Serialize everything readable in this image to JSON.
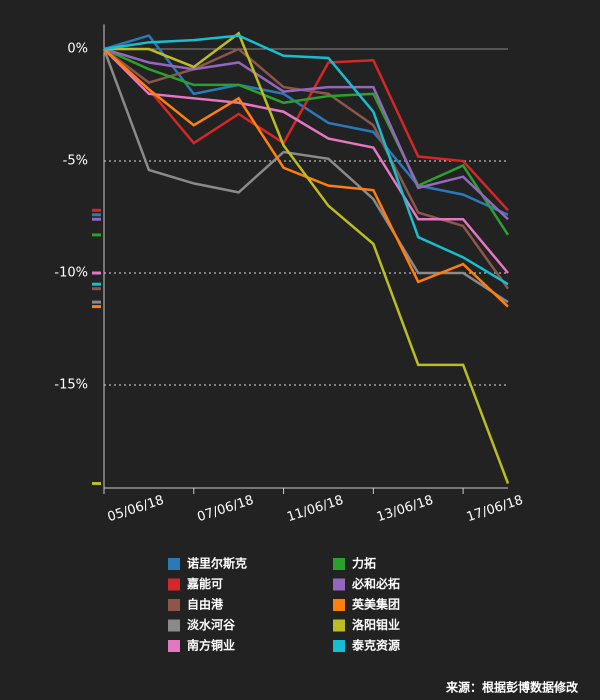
{
  "chart_data": {
    "type": "line",
    "categories": [
      "05/06/18",
      null,
      "07/06/18",
      null,
      "11/06/18",
      null,
      "13/06/18",
      null,
      "17/06/18",
      null
    ],
    "ylim": [
      -19.6,
      1.1
    ],
    "yticks": [
      {
        "value": 0,
        "label": "0%"
      },
      {
        "value": -5,
        "label": "-5%"
      },
      {
        "value": -10,
        "label": "-10%"
      },
      {
        "value": -15,
        "label": "-15%"
      }
    ],
    "grid": true,
    "series": [
      {
        "name": "诺里尔斯克",
        "color": "#2a7ab9",
        "values": [
          0,
          0.6,
          -2.0,
          -1.6,
          -2.0,
          -3.3,
          -3.7,
          -6.1,
          -6.5,
          -7.4
        ]
      },
      {
        "name": "嘉能可",
        "color": "#d62728",
        "values": [
          0,
          -1.8,
          -4.2,
          -2.9,
          -4.2,
          -0.6,
          -0.5,
          -4.8,
          -5.0,
          -7.2
        ]
      },
      {
        "name": "自由港",
        "color": "#8c564b",
        "values": [
          0,
          -1.5,
          -0.9,
          0,
          -1.7,
          -2.0,
          -3.4,
          -7.3,
          -7.9,
          -10.7
        ]
      },
      {
        "name": "淡水河谷",
        "color": "#8a8a8a",
        "values": [
          0,
          -5.4,
          -6.0,
          -6.4,
          -4.6,
          -4.9,
          -6.7,
          -10.0,
          -10.0,
          -11.3
        ]
      },
      {
        "name": "南方铜业",
        "color": "#e377c2",
        "values": [
          0,
          -2.0,
          -2.2,
          -2.4,
          -2.8,
          -4.0,
          -4.4,
          -7.6,
          -7.6,
          -10.0
        ]
      },
      {
        "name": "力拓",
        "color": "#2ca02c",
        "values": [
          0,
          -0.9,
          -1.6,
          -1.6,
          -2.4,
          -2.1,
          -2.0,
          -6.1,
          -5.2,
          -8.3
        ]
      },
      {
        "name": "必和必拓",
        "color": "#9467bd",
        "values": [
          0,
          -0.6,
          -0.9,
          -0.6,
          -1.9,
          -1.7,
          -1.7,
          -6.2,
          -5.7,
          -7.6
        ]
      },
      {
        "name": "英美集团",
        "color": "#ff7f0e",
        "values": [
          0,
          -1.8,
          -3.4,
          -2.2,
          -5.3,
          -6.1,
          -6.3,
          -10.4,
          -9.6,
          -11.5
        ]
      },
      {
        "name": "洛阳钼业",
        "color": "#bcbd22",
        "values": [
          0,
          0,
          -0.8,
          0.7,
          -4.3,
          -7.0,
          -8.7,
          -14.1,
          -14.1,
          -19.4
        ]
      },
      {
        "name": "泰克资源",
        "color": "#17becf",
        "values": [
          0,
          0.3,
          0.4,
          0.6,
          -0.3,
          -0.4,
          -2.8,
          -8.4,
          -9.3,
          -10.5
        ]
      }
    ],
    "source": "来源：根据彭博数据修改"
  }
}
